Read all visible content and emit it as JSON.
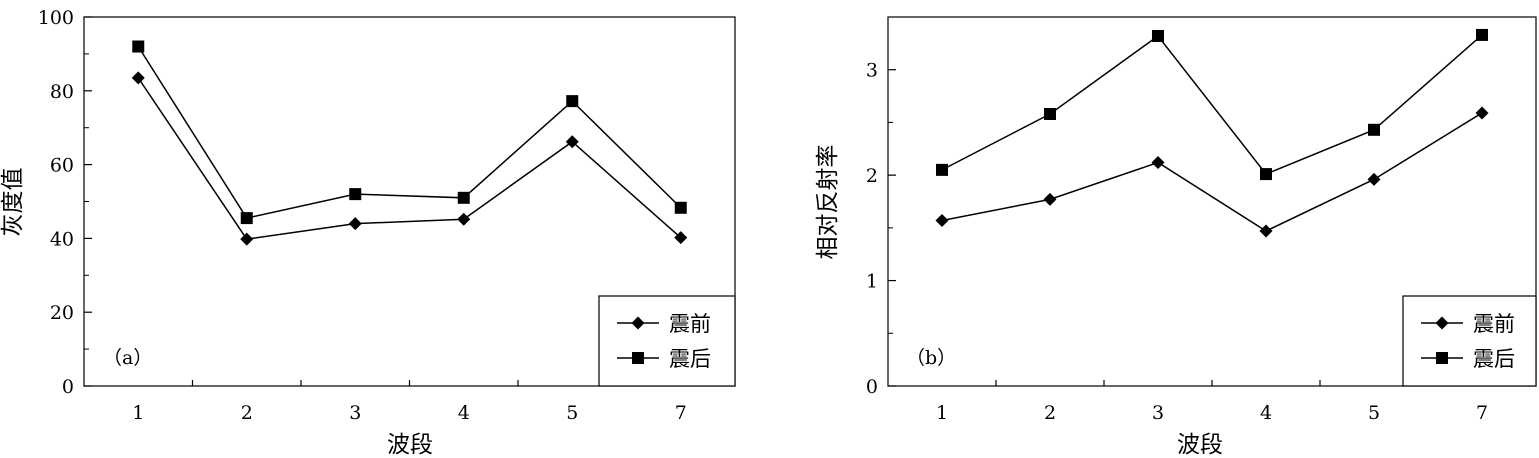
{
  "chart_data": [
    {
      "type": "line",
      "panel_label": "（a）",
      "categories": [
        "1",
        "2",
        "3",
        "4",
        "5",
        "7"
      ],
      "xlabel": "波段",
      "ylabel": "灰度值",
      "ylim": [
        0,
        100
      ],
      "yticks": [
        0,
        20,
        40,
        60,
        80,
        100
      ],
      "grid": false,
      "legend_position": "bottom-right",
      "series": [
        {
          "name": "震前",
          "marker": "diamond",
          "values": [
            83.5,
            39.8,
            44.0,
            45.2,
            66.2,
            40.2
          ]
        },
        {
          "name": "震后",
          "marker": "square",
          "values": [
            92.0,
            45.5,
            52.0,
            51.0,
            77.2,
            48.3
          ]
        }
      ]
    },
    {
      "type": "line",
      "panel_label": "（b）",
      "categories": [
        "1",
        "2",
        "3",
        "4",
        "5",
        "7"
      ],
      "xlabel": "波段",
      "ylabel": "相对反射率",
      "ylim": [
        0,
        3.5
      ],
      "yticks": [
        0,
        1,
        2,
        3
      ],
      "grid": false,
      "legend_position": "bottom-right",
      "series": [
        {
          "name": "震前",
          "marker": "diamond",
          "values": [
            1.57,
            1.77,
            2.12,
            1.47,
            1.96,
            2.59
          ]
        },
        {
          "name": "震后",
          "marker": "square",
          "values": [
            2.05,
            2.58,
            3.32,
            2.01,
            2.43,
            3.33
          ]
        }
      ]
    }
  ]
}
